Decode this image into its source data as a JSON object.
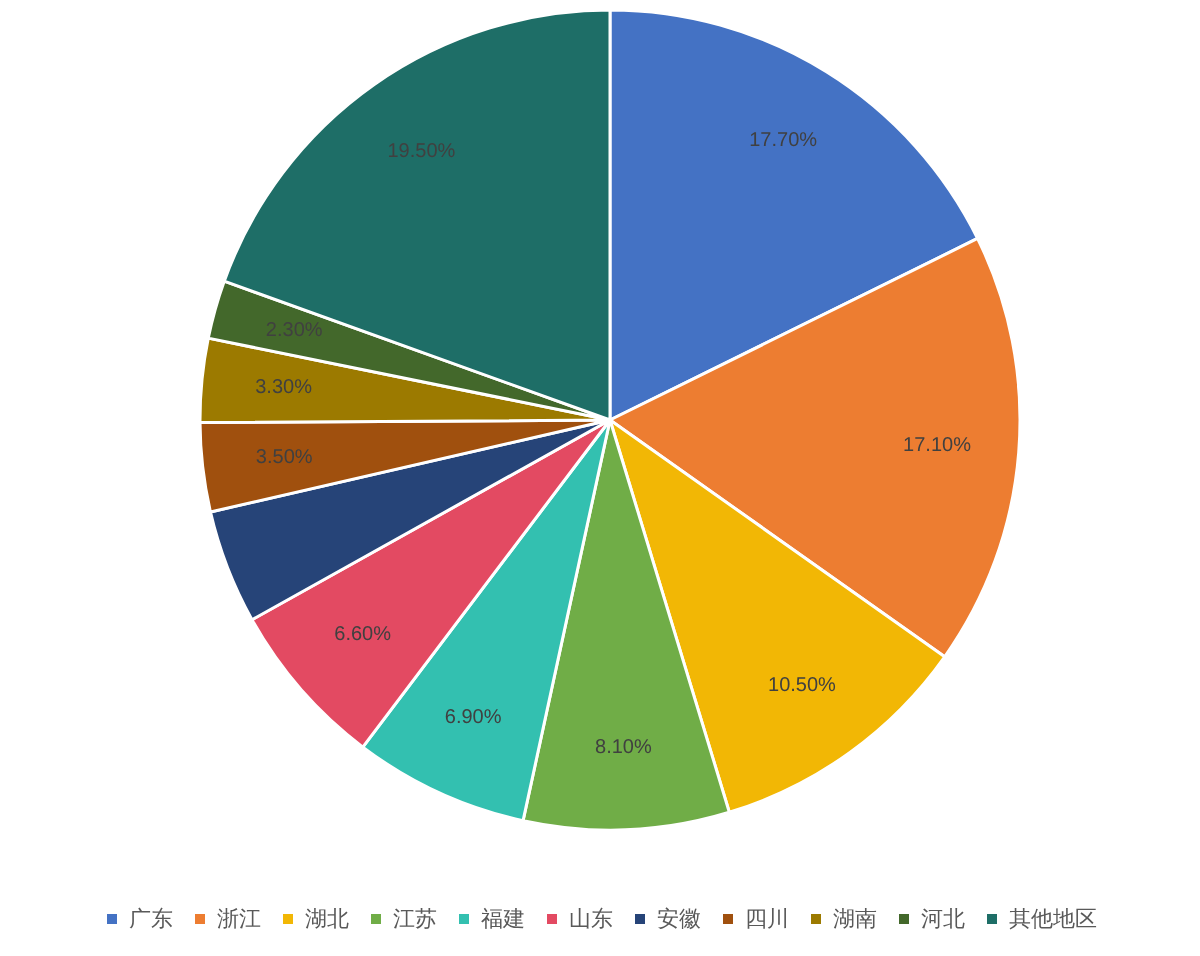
{
  "chart_data": {
    "type": "pie",
    "categories": [
      "广东",
      "浙江",
      "湖北",
      "江苏",
      "福建",
      "山东",
      "安徽",
      "四川",
      "湖南",
      "河北",
      "其他地区"
    ],
    "values": [
      17.7,
      17.1,
      10.5,
      8.1,
      6.9,
      6.6,
      4.5,
      3.5,
      3.3,
      2.3,
      19.5
    ],
    "colors": [
      "#4472c4",
      "#ed7d31",
      "#f2b705",
      "#70ad47",
      "#33c0b0",
      "#e34a62",
      "#264478",
      "#a0500e",
      "#9c7a00",
      "#43682b",
      "#1e6e67"
    ],
    "value_labels": [
      "17.70%",
      "17.10%",
      "10.50%",
      "8.10%",
      "6.90%",
      "6.60%",
      null,
      "3.50%",
      "3.30%",
      "2.30%",
      "19.50%"
    ],
    "legend": "bottom"
  }
}
